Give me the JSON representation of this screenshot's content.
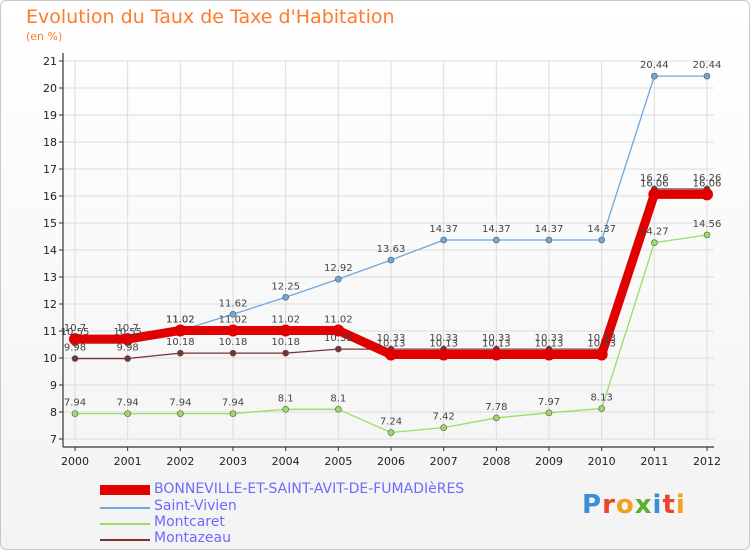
{
  "title": "Evolution du Taux de Taxe d'Habitation",
  "subtitle": "(en %)",
  "logo": {
    "text": "Proxiti",
    "colors": [
      "#3a8fd8",
      "#e8472a",
      "#f2a01f",
      "#5cb030",
      "#3a8fd8",
      "#e8472a",
      "#f2a01f"
    ]
  },
  "chart_data": {
    "type": "line",
    "title": "Evolution du Taux de Taxe d'Habitation",
    "ylabel": "(en %)",
    "xlabel": "",
    "x": [
      "2000",
      "2001",
      "2002",
      "2003",
      "2004",
      "2005",
      "2006",
      "2007",
      "2008",
      "2009",
      "2010",
      "2011",
      "2012"
    ],
    "ylim": [
      7,
      21
    ],
    "yticks": [
      7,
      8,
      9,
      10,
      11,
      12,
      13,
      14,
      15,
      16,
      17,
      18,
      19,
      20,
      21
    ],
    "grid": true,
    "legend_position": "bottom-left",
    "series": [
      {
        "name": "BONNEVILLE-ET-SAINT-AVIT-DE-FUMADIèRES",
        "color": "#e00000",
        "values": [
          10.7,
          10.7,
          11.02,
          11.02,
          11.02,
          11.02,
          10.13,
          10.13,
          10.13,
          10.13,
          10.13,
          16.06,
          16.06
        ],
        "labels": [
          "10.7",
          "10.7",
          "11.02",
          "11.02",
          "11.02",
          "11.02",
          "10.13",
          "10.13",
          "10.13",
          "10.13",
          "10.13",
          "16.06",
          "16.06"
        ]
      },
      {
        "name": "Saint-Vivien",
        "color": "#6fa8dc",
        "values": [
          10.55,
          10.55,
          11.02,
          11.62,
          12.25,
          12.92,
          13.63,
          14.37,
          14.37,
          14.37,
          14.37,
          20.44,
          20.44
        ],
        "labels": [
          "10.55",
          "10.55",
          "11.02",
          "11.62",
          "12.25",
          "12.92",
          "13.63",
          "14.37",
          "14.37",
          "14.37",
          "14.37",
          "20.44",
          "20.44"
        ]
      },
      {
        "name": "Montcaret",
        "color": "#99dd66",
        "values": [
          7.94,
          7.94,
          7.94,
          7.94,
          8.1,
          8.1,
          7.24,
          7.42,
          7.78,
          7.97,
          8.13,
          14.27,
          14.56
        ],
        "labels": [
          "7.94",
          "7.94",
          "7.94",
          "7.94",
          "8.1",
          "8.1",
          "7.24",
          "7.42",
          "7.78",
          "7.97",
          "8.13",
          "14.27",
          "14.56"
        ]
      },
      {
        "name": "Montazeau",
        "color": "#7a3333",
        "values": [
          9.98,
          9.98,
          10.18,
          10.18,
          10.18,
          10.33,
          10.33,
          10.33,
          10.33,
          10.33,
          10.33,
          16.26,
          16.26
        ],
        "labels": [
          "9.98",
          "9.98",
          "10.18",
          "10.18",
          "10.18",
          "10.33",
          "10.33",
          "10.33",
          "10.33",
          "10.33",
          "10.33",
          "16.26",
          "16.26"
        ]
      }
    ]
  }
}
